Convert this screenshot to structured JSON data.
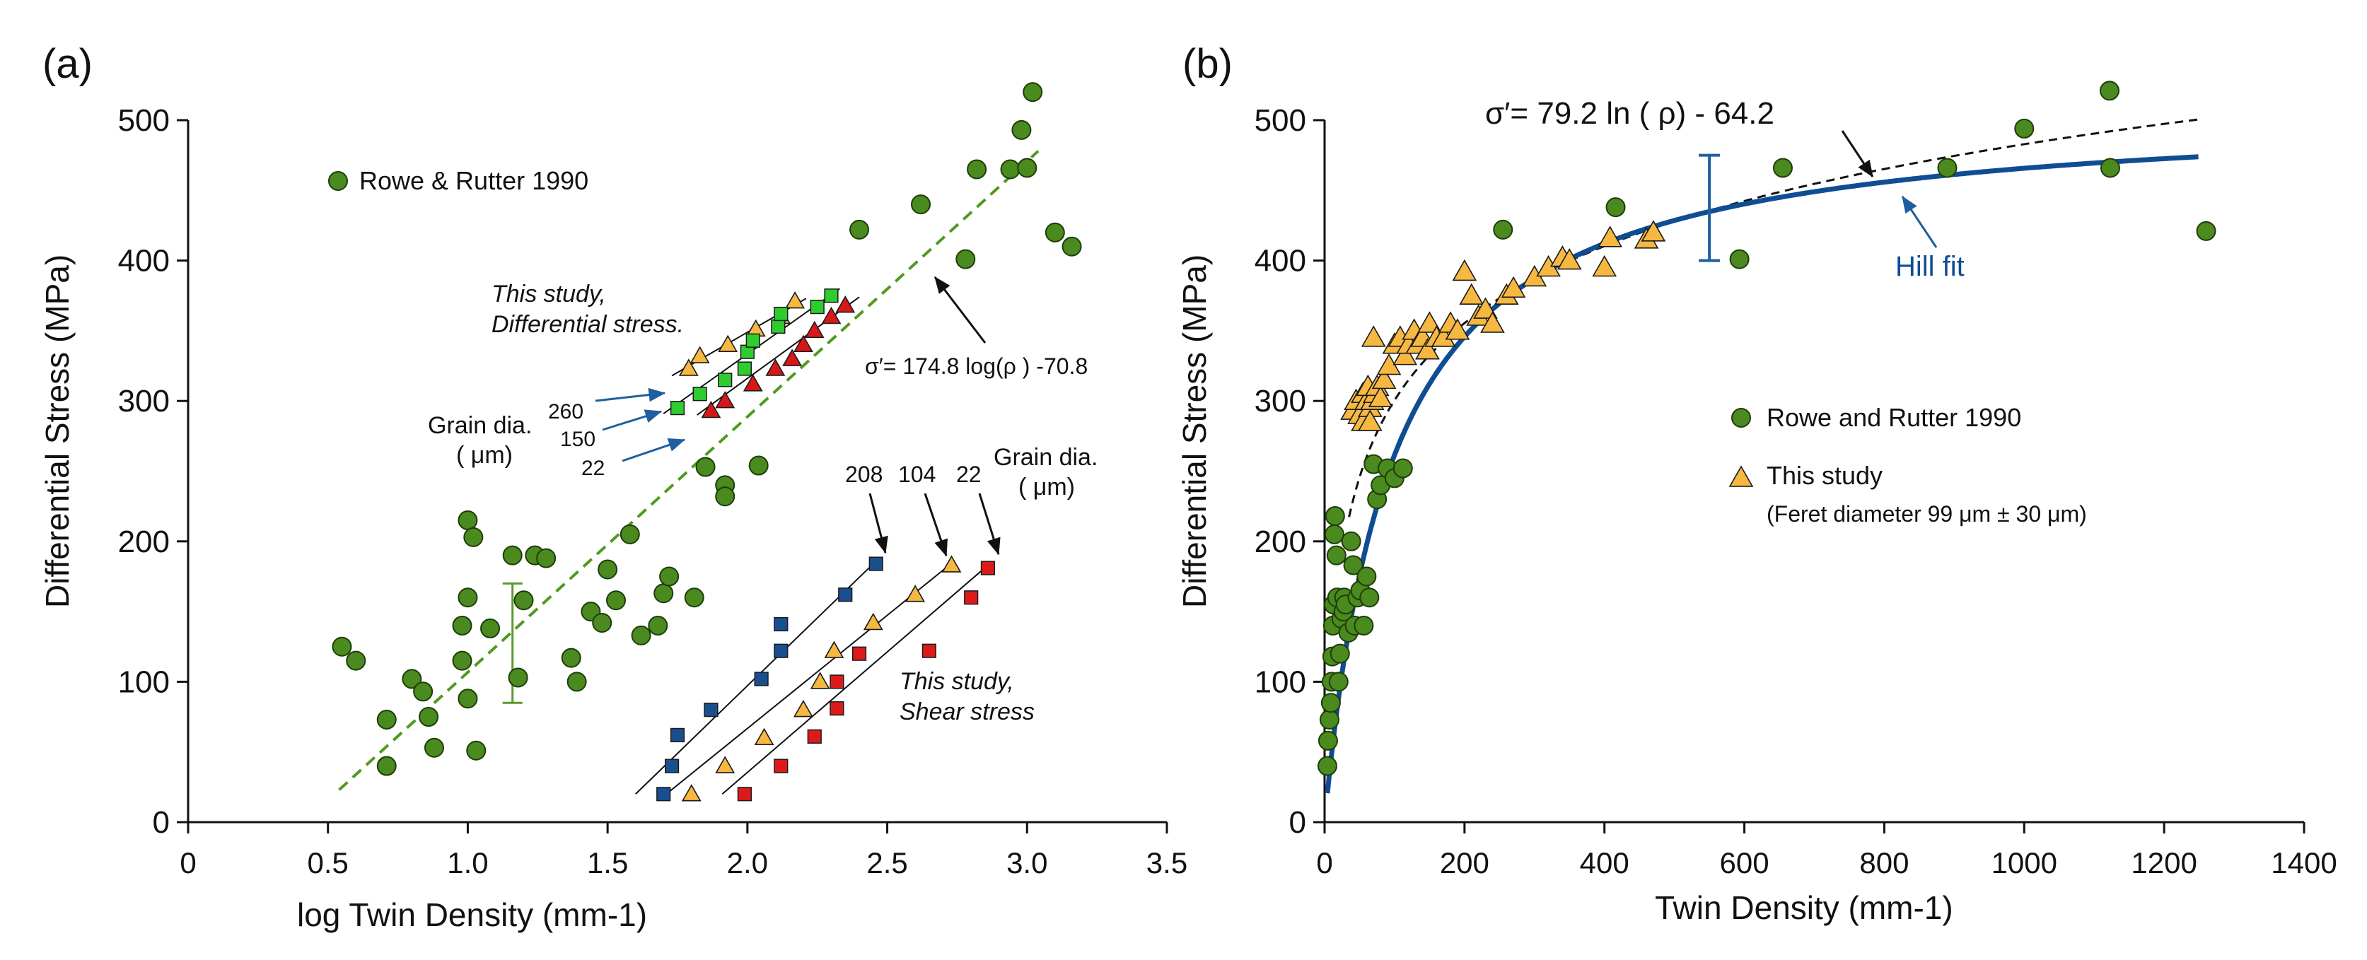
{
  "colors": {
    "green_dot": "#4a8a1e",
    "green_dot_stroke": "#1e3d0a",
    "green_sq": "#2ecc2e",
    "blue_sq": "#1a4f8f",
    "red_tri": "#d81818",
    "red_sq": "#dd1a1a",
    "orange_tri": "#f7b841",
    "hill": "#0f4d93",
    "arrow_blue": "#1f5f9f",
    "errbar_green": "#5a9a2e",
    "errbar_blue": "#1f5f9f",
    "ink": "#111111"
  },
  "chart_data": [
    {
      "type": "scatter",
      "panel_label": "(a)",
      "xlabel": "log Twin Density  (mm-1)",
      "ylabel": "Differential Stress  (MPa)",
      "xlim": [
        0,
        3.5
      ],
      "ylim": [
        0,
        500
      ],
      "xticks": [
        0,
        0.5,
        1.0,
        1.5,
        2.0,
        2.5,
        3.0,
        3.5
      ],
      "xtick_labels": [
        "0",
        "0.5",
        "1.0",
        "1.5",
        "2.0",
        "2.5",
        "3.0",
        "3.5"
      ],
      "yticks": [
        0,
        100,
        200,
        300,
        400,
        500
      ],
      "ytick_labels": [
        "0",
        "100",
        "200",
        "300",
        "400",
        "500"
      ],
      "legend": "Rowe & Rutter 1990",
      "series": [
        {
          "name": "Rowe & Rutter 1990",
          "marker": "circle",
          "color": "green_dot",
          "x": [
            0.55,
            0.6,
            0.71,
            0.71,
            0.8,
            0.84,
            0.86,
            0.88,
            0.98,
            0.98,
            1.0,
            1.0,
            1.0,
            1.02,
            1.03,
            1.08,
            1.16,
            1.18,
            1.2,
            1.24,
            1.28,
            1.37,
            1.39,
            1.44,
            1.48,
            1.5,
            1.53,
            1.58,
            1.62,
            1.68,
            1.7,
            1.72,
            1.81,
            1.85,
            1.92,
            1.92,
            2.04,
            2.4,
            2.62,
            2.78,
            2.82,
            2.94,
            2.98,
            3.0,
            3.02,
            3.1,
            3.16
          ],
          "y": [
            125,
            115,
            73,
            40,
            102,
            93,
            75,
            53,
            140,
            115,
            215,
            160,
            88,
            203,
            51,
            138,
            190,
            103,
            158,
            190,
            188,
            117,
            100,
            150,
            142,
            180,
            158,
            205,
            133,
            140,
            163,
            175,
            160,
            253,
            240,
            232,
            254,
            422,
            440,
            401,
            465,
            465,
            493,
            466,
            520,
            420,
            410
          ]
        },
        {
          "name": "Shear stress, 208 um",
          "marker": "square",
          "color": "blue_sq",
          "x": [
            1.7,
            1.73,
            1.75,
            1.87,
            2.05,
            2.12,
            2.12,
            2.35,
            2.46
          ],
          "y": [
            20,
            40,
            62,
            80,
            102,
            122,
            141,
            162,
            184
          ]
        },
        {
          "name": "Shear stress, 104 um",
          "marker": "triangle",
          "color": "orange_tri",
          "x": [
            1.8,
            1.92,
            2.06,
            2.2,
            2.26,
            2.31,
            2.45,
            2.6,
            2.73
          ],
          "y": [
            20,
            40,
            60,
            80,
            100,
            122,
            142,
            162,
            183
          ]
        },
        {
          "name": "Shear stress, 22 um",
          "marker": "square",
          "color": "red_sq",
          "x": [
            1.99,
            2.12,
            2.24,
            2.32,
            2.32,
            2.4,
            2.65,
            2.8,
            2.86
          ],
          "y": [
            20,
            40,
            61,
            81,
            100,
            120,
            122,
            160,
            181
          ]
        },
        {
          "name": "Differential stress, 260 um",
          "marker": "triangle",
          "color": "orange_tri",
          "x": [
            1.79,
            1.83,
            1.93,
            2.03,
            2.12,
            2.17
          ],
          "y": [
            323,
            332,
            340,
            351,
            360,
            371
          ]
        },
        {
          "name": "Differential stress, 150 um",
          "marker": "square",
          "color": "green_sq",
          "x": [
            1.75,
            1.83,
            1.92,
            1.99,
            2.0,
            2.02,
            2.11,
            2.12,
            2.25,
            2.3
          ],
          "y": [
            295,
            305,
            315,
            323,
            335,
            343,
            353,
            362,
            367,
            375
          ]
        },
        {
          "name": "Differential stress, 22 um",
          "marker": "triangle",
          "color": "red_tri",
          "x": [
            1.87,
            1.92,
            2.02,
            2.1,
            2.16,
            2.2,
            2.24,
            2.3,
            2.35
          ],
          "y": [
            293,
            300,
            312,
            323,
            330,
            340,
            350,
            360,
            368
          ]
        }
      ],
      "fit_lines": [
        {
          "style": "green dashed",
          "x": [
            0.54,
            3.04
          ],
          "y": [
            23,
            478
          ]
        },
        {
          "style": "black",
          "x": [
            1.6,
            2.45
          ],
          "y": [
            20,
            184
          ]
        },
        {
          "style": "black",
          "x": [
            1.71,
            2.74
          ],
          "y": [
            20,
            186
          ]
        },
        {
          "style": "black",
          "x": [
            1.91,
            2.86
          ],
          "y": [
            20,
            183
          ]
        },
        {
          "style": "black",
          "x": [
            1.73,
            2.21
          ],
          "y": [
            318,
            373
          ]
        },
        {
          "style": "black",
          "x": [
            1.7,
            2.33
          ],
          "y": [
            291,
            380
          ]
        },
        {
          "style": "black",
          "x": [
            1.82,
            2.4
          ],
          "y": [
            290,
            374
          ]
        }
      ],
      "error_bar": {
        "x": 1.16,
        "y_low": 85,
        "y_high": 170
      },
      "annotations": {
        "equation": "σ′= 174.8 log(ρ ) -70.8",
        "diff_study_line1": "This study,",
        "diff_study_line2": "Differential stress.",
        "grain_dia": "Grain dia.",
        "grain_unit": "( μm)",
        "grain_260": "260",
        "grain_150": "150",
        "grain_22": "22",
        "shear_208": "208",
        "shear_104": "104",
        "shear_22": "22",
        "shear_grain_dia": "Grain dia.",
        "shear_grain_unit": "( μm)",
        "shear_study_line1": "This study,",
        "shear_study_line2": "Shear stress"
      }
    },
    {
      "type": "scatter",
      "panel_label": "(b)",
      "xlabel": "Twin Density  (mm-1)",
      "ylabel": "Differential Stress  (MPa)",
      "xlim": [
        0,
        1400
      ],
      "ylim": [
        0,
        500
      ],
      "xticks": [
        0,
        200,
        400,
        600,
        800,
        1000,
        1200,
        1400
      ],
      "xtick_labels": [
        "0",
        "200",
        "400",
        "600",
        "800",
        "1000",
        "1200",
        "1400"
      ],
      "yticks": [
        0,
        100,
        200,
        300,
        400,
        500
      ],
      "ytick_labels": [
        "0",
        "100",
        "200",
        "300",
        "400",
        "500"
      ],
      "legend": [
        "Rowe and Rutter 1990",
        "This study",
        "(Feret diameter 99 μm  ± 30 μm)"
      ],
      "series": [
        {
          "name": "Rowe and Rutter 1990",
          "marker": "circle",
          "color": "green_dot",
          "x": [
            4,
            5,
            7,
            9,
            10,
            11,
            12,
            13,
            14,
            15,
            17,
            18,
            20,
            22,
            24,
            27,
            28,
            30,
            34,
            38,
            41,
            43,
            47,
            51,
            56,
            60,
            64,
            70,
            75,
            80,
            90,
            100,
            112,
            255,
            416,
            593,
            655,
            890,
            1000,
            1122,
            1123,
            1260
          ],
          "y": [
            40,
            58,
            73,
            85,
            100,
            118,
            140,
            155,
            205,
            218,
            190,
            160,
            100,
            120,
            145,
            150,
            160,
            155,
            135,
            200,
            183,
            140,
            160,
            165,
            140,
            175,
            160,
            255,
            230,
            240,
            252,
            245,
            252,
            422,
            438,
            401,
            466,
            466,
            494,
            521,
            466,
            421
          ]
        },
        {
          "name": "This study",
          "marker": "triangle",
          "color": "orange_tri",
          "x": [
            40,
            45,
            50,
            55,
            55,
            60,
            62,
            65,
            65,
            68,
            70,
            72,
            75,
            80,
            85,
            92,
            100,
            108,
            115,
            120,
            128,
            133,
            140,
            147,
            150,
            160,
            170,
            180,
            190,
            200,
            210,
            220,
            230,
            240,
            260,
            270,
            300,
            320,
            340,
            350,
            400,
            408,
            460,
            470
          ],
          "y": [
            293,
            300,
            290,
            285,
            305,
            300,
            310,
            295,
            285,
            300,
            345,
            305,
            310,
            302,
            315,
            325,
            340,
            345,
            332,
            340,
            350,
            340,
            345,
            336,
            355,
            345,
            345,
            355,
            350,
            392,
            375,
            360,
            365,
            355,
            375,
            380,
            388,
            395,
            402,
            400,
            395,
            416,
            415,
            420
          ]
        }
      ],
      "fit_curves": [
        {
          "name": "Hill fit",
          "style": "blue solid",
          "equation": "y = 510 * x / (x + 95)"
        },
        {
          "name": "log fit",
          "style": "black dashed",
          "equation": "y = 79.2 ln(x) - 64.2"
        }
      ],
      "error_bar": {
        "x": 550,
        "y_low": 400,
        "y_high": 475
      },
      "annotations": {
        "equation_lhs": "σ′= 79.2 ln ( ρ) - 64.2",
        "hill_label": "Hill fit"
      }
    }
  ]
}
